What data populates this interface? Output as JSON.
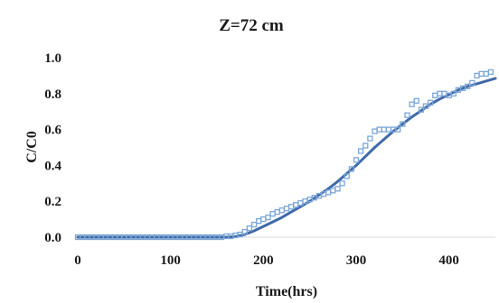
{
  "chart_data": {
    "type": "scatter",
    "title": "Z=72 cm",
    "xlabel": "Time(hrs)",
    "ylabel": "C/C0",
    "xlim": [
      0,
      450
    ],
    "ylim": [
      0,
      1.0
    ],
    "x_ticks": [
      "0",
      "100",
      "200",
      "300",
      "400"
    ],
    "x_tick_values": [
      0,
      100,
      200,
      300,
      400
    ],
    "y_ticks": [
      "0.0",
      "0.2",
      "0.4",
      "0.6",
      "0.8",
      "1.0"
    ],
    "y_tick_values": [
      0.0,
      0.2,
      0.4,
      0.6,
      0.8,
      1.0
    ],
    "grid": false,
    "legend": "none",
    "colors": {
      "points": "#7aa6d8",
      "line": "#3f6aa8",
      "axis": "#d9d9d9",
      "text": "#1a1a1a"
    },
    "series": [
      {
        "kind": "scatter",
        "marker": "square",
        "x": [
          0,
          5,
          10,
          15,
          20,
          25,
          30,
          35,
          40,
          45,
          50,
          55,
          60,
          65,
          70,
          75,
          80,
          85,
          90,
          95,
          100,
          105,
          110,
          115,
          120,
          125,
          130,
          135,
          140,
          145,
          150,
          155,
          160,
          165,
          170,
          175,
          180,
          185,
          190,
          195,
          200,
          205,
          210,
          215,
          220,
          225,
          230,
          235,
          240,
          245,
          250,
          255,
          260,
          265,
          270,
          275,
          280,
          285,
          290,
          295,
          300,
          305,
          310,
          315,
          320,
          325,
          330,
          335,
          340,
          345,
          350,
          355,
          360,
          365,
          370,
          375,
          380,
          385,
          390,
          395,
          400,
          405,
          410,
          415,
          420,
          425,
          430,
          435,
          440,
          445
        ],
        "y": [
          0,
          0,
          0,
          0,
          0,
          0,
          0,
          0,
          0,
          0,
          0,
          0,
          0,
          0,
          0,
          0,
          0,
          0,
          0,
          0,
          0,
          0,
          0,
          0,
          0,
          0,
          0,
          0,
          0,
          0,
          0,
          0,
          0.005,
          0.005,
          0.01,
          0.015,
          0.03,
          0.05,
          0.07,
          0.09,
          0.1,
          0.11,
          0.13,
          0.14,
          0.15,
          0.16,
          0.17,
          0.18,
          0.19,
          0.2,
          0.21,
          0.22,
          0.23,
          0.24,
          0.25,
          0.26,
          0.27,
          0.3,
          0.34,
          0.38,
          0.43,
          0.48,
          0.51,
          0.55,
          0.59,
          0.6,
          0.6,
          0.6,
          0.6,
          0.6,
          0.63,
          0.68,
          0.74,
          0.76,
          0.71,
          0.73,
          0.75,
          0.79,
          0.8,
          0.8,
          0.79,
          0.8,
          0.82,
          0.83,
          0.84,
          0.86,
          0.9,
          0.91,
          0.91,
          0.92
        ]
      },
      {
        "kind": "line",
        "x": [
          0,
          20,
          40,
          60,
          80,
          100,
          120,
          140,
          160,
          170,
          180,
          190,
          200,
          210,
          220,
          230,
          240,
          250,
          260,
          270,
          280,
          290,
          300,
          310,
          320,
          330,
          340,
          350,
          360,
          370,
          380,
          390,
          400,
          410,
          420,
          430,
          440,
          450
        ],
        "y": [
          0,
          0,
          0,
          0,
          0,
          0,
          0,
          0,
          0,
          0.003,
          0.015,
          0.035,
          0.06,
          0.085,
          0.11,
          0.14,
          0.17,
          0.2,
          0.235,
          0.27,
          0.31,
          0.355,
          0.4,
          0.45,
          0.5,
          0.545,
          0.59,
          0.63,
          0.67,
          0.705,
          0.74,
          0.77,
          0.795,
          0.82,
          0.84,
          0.855,
          0.87,
          0.885
        ]
      }
    ]
  }
}
